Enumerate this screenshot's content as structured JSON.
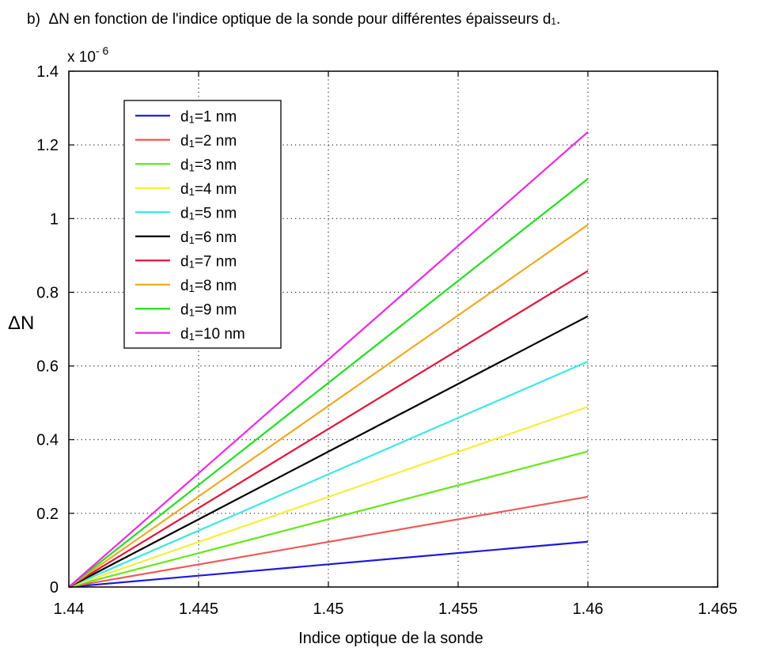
{
  "chart_data": {
    "type": "line",
    "title_prefix": "b)",
    "title_delta": "ΔN",
    "title_main": " en fonction de l'indice optique de la sonde pour différentes épaisseurs d",
    "title_sub": "1",
    "title_end": ".",
    "xlabel": "Indice optique de la sonde",
    "ylabel": "ΔN",
    "y_multiplier_base": "x 10",
    "y_multiplier_exp": "- 6",
    "xlim": [
      1.44,
      1.465
    ],
    "ylim": [
      0,
      1.4
    ],
    "x_ticks": [
      1.44,
      1.445,
      1.45,
      1.455,
      1.46,
      1.465
    ],
    "x_tick_labels": [
      "1.44",
      "1.445",
      "1.45",
      "1.455",
      "1.46",
      "1.465"
    ],
    "y_ticks": [
      0,
      0.2,
      0.4,
      0.6,
      0.8,
      1,
      1.2,
      1.4
    ],
    "y_tick_labels": [
      "0",
      "0.2",
      "0.4",
      "0.6",
      "0.8",
      "1",
      "1.2",
      "1.4"
    ],
    "grid": true,
    "legend_position": "top-left",
    "x": [
      1.44,
      1.46
    ],
    "series": [
      {
        "name_base": "d",
        "name_sub": "1",
        "name_rest": "=1 nm",
        "color": "#1a1adf",
        "values": [
          0,
          0.123
        ]
      },
      {
        "name_base": "d",
        "name_sub": "1",
        "name_rest": "=2 nm",
        "color": "#ee5a5a",
        "values": [
          0,
          0.245
        ]
      },
      {
        "name_base": "d",
        "name_sub": "1",
        "name_rest": "=3 nm",
        "color": "#66e61a",
        "values": [
          0,
          0.368
        ]
      },
      {
        "name_base": "d",
        "name_sub": "1",
        "name_rest": "=4 nm",
        "color": "#f2ef3a",
        "values": [
          0,
          0.489
        ]
      },
      {
        "name_base": "d",
        "name_sub": "1",
        "name_rest": "=5 nm",
        "color": "#3de6e6",
        "values": [
          0,
          0.612
        ]
      },
      {
        "name_base": "d",
        "name_sub": "1",
        "name_rest": "=6 nm",
        "color": "#000000",
        "values": [
          0,
          0.735
        ]
      },
      {
        "name_base": "d",
        "name_sub": "1",
        "name_rest": "=7 nm",
        "color": "#e0163c",
        "values": [
          0,
          0.858
        ]
      },
      {
        "name_base": "d",
        "name_sub": "1",
        "name_rest": "=8 nm",
        "color": "#eeaa22",
        "values": [
          0,
          0.983
        ]
      },
      {
        "name_base": "d",
        "name_sub": "1",
        "name_rest": "=9 nm",
        "color": "#22dd22",
        "values": [
          0,
          1.108
        ]
      },
      {
        "name_base": "d",
        "name_sub": "1",
        "name_rest": "=10 nm",
        "color": "#ea2ae0",
        "values": [
          0,
          1.235
        ]
      }
    ]
  }
}
